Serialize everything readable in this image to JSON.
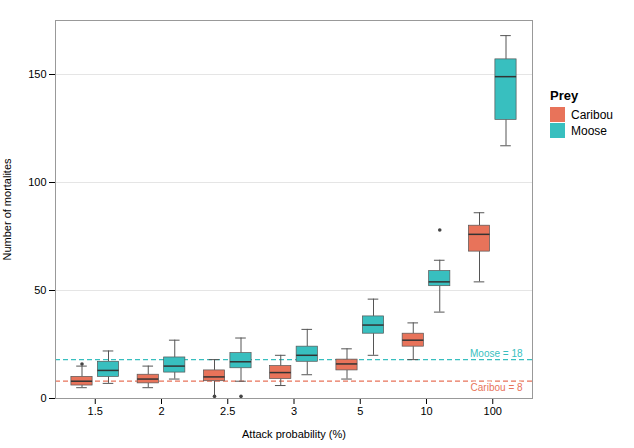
{
  "chart_data": {
    "type": "box",
    "categories": [
      "1.5",
      "2",
      "2.5",
      "3",
      "5",
      "10",
      "100"
    ],
    "xlabel": "Attack probability (%)",
    "ylabel": "Number of mortalites",
    "ylim": [
      0,
      175
    ],
    "yticks": [
      0,
      50,
      100,
      150
    ],
    "grid": true,
    "legend": "right",
    "legend_title": "Prey",
    "series": [
      {
        "name": "Caribou",
        "color": "#E8735A",
        "boxes": [
          {
            "whislo": 5,
            "q1": 6,
            "med": 8,
            "q3": 10,
            "whishi": 15,
            "fliers": [
              16
            ]
          },
          {
            "whislo": 5,
            "q1": 7,
            "med": 9,
            "q3": 11,
            "whishi": 15,
            "fliers": []
          },
          {
            "whislo": 0,
            "q1": 8,
            "med": 10,
            "q3": 13,
            "whishi": 18,
            "fliers": [
              1
            ]
          },
          {
            "whislo": 6,
            "q1": 9,
            "med": 12,
            "q3": 15,
            "whishi": 20,
            "fliers": []
          },
          {
            "whislo": 9,
            "q1": 13,
            "med": 16,
            "q3": 18,
            "whishi": 23,
            "fliers": []
          },
          {
            "whislo": 18,
            "q1": 24,
            "med": 27,
            "q3": 30,
            "whishi": 35,
            "fliers": []
          },
          {
            "whislo": 54,
            "q1": 68,
            "med": 76,
            "q3": 80,
            "whishi": 86,
            "fliers": []
          }
        ]
      },
      {
        "name": "Moose",
        "color": "#38BFBF",
        "boxes": [
          {
            "whislo": 7,
            "q1": 10,
            "med": 13,
            "q3": 17,
            "whishi": 22,
            "fliers": []
          },
          {
            "whislo": 9,
            "q1": 12,
            "med": 15,
            "q3": 19,
            "whishi": 27,
            "fliers": []
          },
          {
            "whislo": 8,
            "q1": 14,
            "med": 17,
            "q3": 21,
            "whishi": 28,
            "fliers": [
              1
            ]
          },
          {
            "whislo": 11,
            "q1": 17,
            "med": 20,
            "q3": 24,
            "whishi": 32,
            "fliers": []
          },
          {
            "whislo": 20,
            "q1": 30,
            "med": 34,
            "q3": 38,
            "whishi": 46,
            "fliers": []
          },
          {
            "whislo": 40,
            "q1": 52,
            "med": 54,
            "q3": 59,
            "whishi": 64,
            "fliers": [
              78
            ]
          },
          {
            "whislo": 117,
            "q1": 129,
            "med": 149,
            "q3": 157,
            "whishi": 168,
            "fliers": []
          }
        ]
      }
    ],
    "reference_lines": [
      {
        "value": 18,
        "label": "Moose = 18",
        "color": "#38BFBF",
        "line_style": "dashed"
      },
      {
        "value": 8,
        "label": "Caribou = 8",
        "color": "#E8735A",
        "line_style": "dashed"
      }
    ]
  }
}
